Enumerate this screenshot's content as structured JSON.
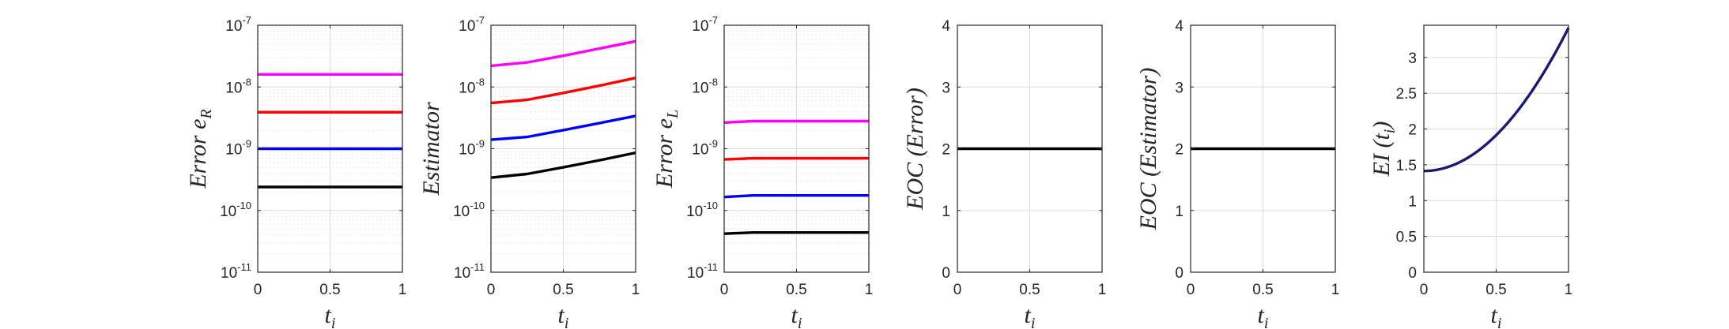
{
  "chart_data": [
    {
      "type": "line",
      "xlabel": "t",
      "xlabel_sub": "i",
      "ylabel": "Error e",
      "ylabel_sub": "R",
      "yscale": "log",
      "ylim": [
        1e-11,
        1e-07
      ],
      "xlim": [
        0,
        1
      ],
      "x_ticks": [
        "0",
        "0.5",
        "1"
      ],
      "y_ticks": [
        "10^-11",
        "10^-10",
        "10^-9",
        "10^-8",
        "10^-7"
      ],
      "grid": "on (major and minor)",
      "x": [
        0,
        0.5,
        1
      ],
      "series": [
        {
          "color": "#ff00ff",
          "values": [
            1.6e-08,
            1.6e-08,
            1.6e-08
          ]
        },
        {
          "color": "#ff0000",
          "values": [
            3.9e-09,
            3.9e-09,
            3.9e-09
          ]
        },
        {
          "color": "#0000ff",
          "values": [
            1e-09,
            1e-09,
            1e-09
          ]
        },
        {
          "color": "#000000",
          "values": [
            2.4e-10,
            2.4e-10,
            2.4e-10
          ]
        }
      ]
    },
    {
      "type": "line",
      "xlabel": "t",
      "xlabel_sub": "i",
      "ylabel": "Estimator",
      "ylabel_sub": "",
      "yscale": "log",
      "ylim": [
        1e-11,
        1e-07
      ],
      "xlim": [
        0,
        1
      ],
      "x_ticks": [
        "0",
        "0.5",
        "1"
      ],
      "y_ticks": [
        "10^-11",
        "10^-10",
        "10^-9",
        "10^-8",
        "10^-7"
      ],
      "grid": "on (major and minor)",
      "x": [
        0,
        0.25,
        0.5,
        0.75,
        1
      ],
      "series": [
        {
          "color": "#ff00ff",
          "values": [
            2.2e-08,
            2.5e-08,
            3.2e-08,
            4.2e-08,
            5.5e-08
          ]
        },
        {
          "color": "#ff0000",
          "values": [
            5.5e-09,
            6.2e-09,
            8e-09,
            1.05e-08,
            1.4e-08
          ]
        },
        {
          "color": "#0000ff",
          "values": [
            1.4e-09,
            1.55e-09,
            2e-09,
            2.6e-09,
            3.4e-09
          ]
        },
        {
          "color": "#000000",
          "values": [
            3.4e-10,
            3.9e-10,
            5e-10,
            6.5e-10,
            8.6e-10
          ]
        }
      ]
    },
    {
      "type": "line",
      "xlabel": "t",
      "xlabel_sub": "i",
      "ylabel": "Error e",
      "ylabel_sub": "L",
      "yscale": "log",
      "ylim": [
        1e-11,
        1e-07
      ],
      "xlim": [
        0,
        1
      ],
      "x_ticks": [
        "0",
        "0.5",
        "1"
      ],
      "y_ticks": [
        "10^-11",
        "10^-10",
        "10^-9",
        "10^-8",
        "10^-7"
      ],
      "grid": "on (major and minor)",
      "x": [
        0,
        0.2,
        1
      ],
      "series": [
        {
          "color": "#ff00ff",
          "values": [
            2.65e-09,
            2.8e-09,
            2.8e-09
          ]
        },
        {
          "color": "#ff0000",
          "values": [
            6.7e-10,
            7e-10,
            7e-10
          ]
        },
        {
          "color": "#0000ff",
          "values": [
            1.65e-10,
            1.75e-10,
            1.75e-10
          ]
        },
        {
          "color": "#000000",
          "values": [
            4.2e-11,
            4.4e-11,
            4.4e-11
          ]
        }
      ]
    },
    {
      "type": "line",
      "xlabel": "t",
      "xlabel_sub": "i",
      "ylabel": "EOC (Error)",
      "ylabel_sub": "",
      "yscale": "linear",
      "ylim": [
        0,
        4
      ],
      "xlim": [
        0,
        1
      ],
      "x_ticks": [
        "0",
        "0.5",
        "1"
      ],
      "y_ticks": [
        "0",
        "1",
        "2",
        "3",
        "4"
      ],
      "grid": "on",
      "x": [
        0,
        1
      ],
      "series": [
        {
          "color": "#000000",
          "values": [
            2,
            2
          ]
        }
      ]
    },
    {
      "type": "line",
      "xlabel": "t",
      "xlabel_sub": "i",
      "ylabel": "EOC (Estimator)",
      "ylabel_sub": "",
      "yscale": "linear",
      "ylim": [
        0,
        4
      ],
      "xlim": [
        0,
        1
      ],
      "x_ticks": [
        "0",
        "0.5",
        "1"
      ],
      "y_ticks": [
        "0",
        "1",
        "2",
        "3",
        "4"
      ],
      "grid": "on",
      "x": [
        0,
        1
      ],
      "series": [
        {
          "color": "#000000",
          "values": [
            2,
            2
          ]
        }
      ]
    },
    {
      "type": "line",
      "xlabel": "t",
      "xlabel_sub": "i",
      "ylabel": "EI (t",
      "ylabel_sub": "i",
      "ylabel_close": ")",
      "yscale": "linear",
      "ylim": [
        0,
        3.45
      ],
      "xlim": [
        0,
        1
      ],
      "x_ticks": [
        "0",
        "0.5",
        "1"
      ],
      "y_ticks": [
        "0",
        "0.5",
        "1",
        "1.5",
        "2",
        "2.5",
        "3"
      ],
      "grid": "on",
      "x": [
        0,
        0.1,
        0.2,
        0.3,
        0.4,
        0.5,
        0.6,
        0.7,
        0.8,
        0.9,
        1
      ],
      "series": [
        {
          "color": "#1a1a6e",
          "values": [
            1.41,
            1.43,
            1.49,
            1.59,
            1.73,
            1.91,
            2.13,
            2.39,
            2.69,
            3.03,
            3.42
          ]
        }
      ]
    }
  ]
}
